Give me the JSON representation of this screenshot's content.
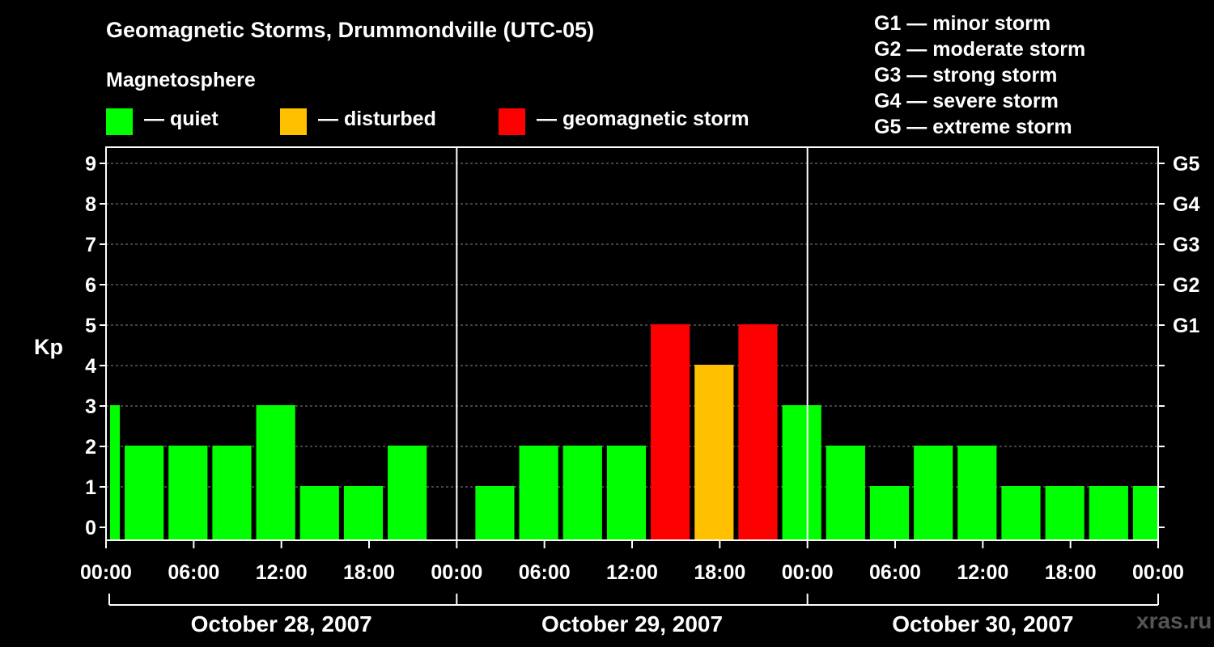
{
  "header": {
    "title": "Geomagnetic Storms, Drummondville (UTC-05)",
    "subtitle": "Magnetosphere"
  },
  "legend": [
    {
      "label": "— quiet",
      "color": "#00ff00"
    },
    {
      "label": "— disturbed",
      "color": "#ffc000"
    },
    {
      "label": "— geomagnetic storm",
      "color": "#ff0000"
    }
  ],
  "storm_scale": [
    "G1 — minor storm",
    "G2 — moderate storm",
    "G3 — strong storm",
    "G4 — severe storm",
    "G5 — extreme storm"
  ],
  "watermark": "xras.ru",
  "chart_data": {
    "type": "bar",
    "title": "Geomagnetic Storms, Drummondville (UTC-05)",
    "ylabel": "Kp",
    "ylim": [
      0,
      9
    ],
    "y_ticks": [
      "0",
      "1",
      "2",
      "3",
      "4",
      "5",
      "6",
      "7",
      "8",
      "9"
    ],
    "right_ticks": [
      {
        "kp": 5,
        "label": "G1"
      },
      {
        "kp": 6,
        "label": "G2"
      },
      {
        "kp": 7,
        "label": "G3"
      },
      {
        "kp": 8,
        "label": "G4"
      },
      {
        "kp": 9,
        "label": "G5"
      }
    ],
    "x_tick_labels": [
      "00:00",
      "06:00",
      "12:00",
      "18:00",
      "00:00",
      "06:00",
      "12:00",
      "18:00",
      "00:00",
      "06:00",
      "12:00",
      "18:00",
      "00:00"
    ],
    "days": [
      "October 28, 2007",
      "October 29, 2007",
      "October 30, 2007"
    ],
    "colors": {
      "quiet": "#00ff00",
      "disturbed": "#ffc000",
      "storm": "#ff0000"
    },
    "bars": [
      {
        "start": "2007-10-28 00:00",
        "end": "2007-10-28 01:00",
        "kp": 3
      },
      {
        "start": "2007-10-28 01:00",
        "end": "2007-10-28 04:00",
        "kp": 2
      },
      {
        "start": "2007-10-28 04:00",
        "end": "2007-10-28 07:00",
        "kp": 2
      },
      {
        "start": "2007-10-28 07:00",
        "end": "2007-10-28 10:00",
        "kp": 2
      },
      {
        "start": "2007-10-28 10:00",
        "end": "2007-10-28 13:00",
        "kp": 3
      },
      {
        "start": "2007-10-28 13:00",
        "end": "2007-10-28 16:00",
        "kp": 1
      },
      {
        "start": "2007-10-28 16:00",
        "end": "2007-10-28 19:00",
        "kp": 1
      },
      {
        "start": "2007-10-28 19:00",
        "end": "2007-10-28 22:00",
        "kp": 2
      },
      {
        "start": "2007-10-29 01:00",
        "end": "2007-10-29 04:00",
        "kp": 1
      },
      {
        "start": "2007-10-29 04:00",
        "end": "2007-10-29 07:00",
        "kp": 2
      },
      {
        "start": "2007-10-29 07:00",
        "end": "2007-10-29 10:00",
        "kp": 2
      },
      {
        "start": "2007-10-29 10:00",
        "end": "2007-10-29 13:00",
        "kp": 2
      },
      {
        "start": "2007-10-29 13:00",
        "end": "2007-10-29 16:00",
        "kp": 5
      },
      {
        "start": "2007-10-29 16:00",
        "end": "2007-10-29 19:00",
        "kp": 4
      },
      {
        "start": "2007-10-29 19:00",
        "end": "2007-10-29 22:00",
        "kp": 5
      },
      {
        "start": "2007-10-29 22:00",
        "end": "2007-10-30 01:00",
        "kp": 3
      },
      {
        "start": "2007-10-30 01:00",
        "end": "2007-10-30 04:00",
        "kp": 2
      },
      {
        "start": "2007-10-30 04:00",
        "end": "2007-10-30 07:00",
        "kp": 1
      },
      {
        "start": "2007-10-30 07:00",
        "end": "2007-10-30 10:00",
        "kp": 2
      },
      {
        "start": "2007-10-30 10:00",
        "end": "2007-10-30 13:00",
        "kp": 2
      },
      {
        "start": "2007-10-30 13:00",
        "end": "2007-10-30 16:00",
        "kp": 1
      },
      {
        "start": "2007-10-30 16:00",
        "end": "2007-10-30 19:00",
        "kp": 1
      },
      {
        "start": "2007-10-30 19:00",
        "end": "2007-10-30 22:00",
        "kp": 1
      },
      {
        "start": "2007-10-30 22:00",
        "end": "2007-10-31 00:00",
        "kp": 1
      }
    ]
  }
}
